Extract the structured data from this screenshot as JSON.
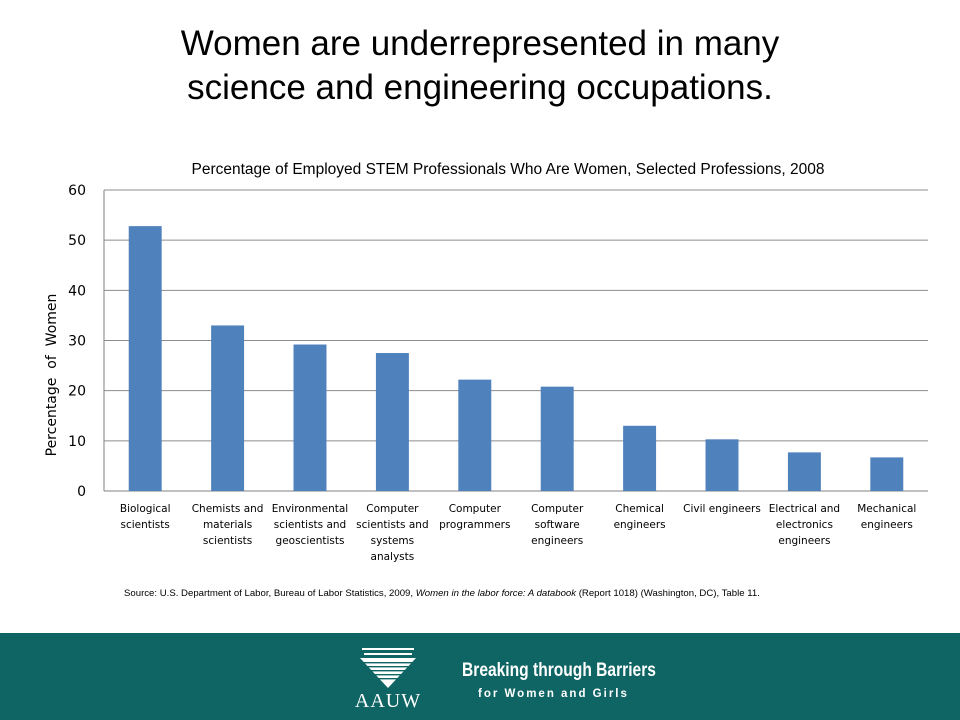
{
  "slide": {
    "title_line1": "Women are underrepresented in many",
    "title_line2": "science and engineering occupations."
  },
  "chart_data": {
    "type": "bar",
    "title": "Percentage of Employed STEM Professionals Who Are Women, Selected Professions, 2008",
    "xlabel": "",
    "ylabel": "Percentage  of  Women",
    "ylim": [
      0,
      60
    ],
    "yticks": [
      0,
      10,
      20,
      30,
      40,
      50,
      60
    ],
    "grid": true,
    "bar_color": "#4f81bd",
    "categories": [
      [
        "Biological",
        "scientists"
      ],
      [
        "Chemists and",
        "materials",
        "scientists"
      ],
      [
        "Environmental",
        "scientists and",
        "geoscientists"
      ],
      [
        "Computer",
        "scientists and",
        "systems",
        "analysts"
      ],
      [
        "Computer",
        "programmers"
      ],
      [
        "Computer",
        "software",
        "engineers"
      ],
      [
        "Chemical",
        "engineers"
      ],
      [
        "Civil engineers"
      ],
      [
        "Electrical and",
        "electronics",
        "engineers"
      ],
      [
        "Mechanical",
        "engineers"
      ]
    ],
    "values": [
      52.8,
      33.0,
      29.2,
      27.5,
      22.2,
      20.8,
      13.0,
      10.3,
      7.7,
      6.7
    ]
  },
  "source": {
    "prefix": "Source: U.S. Department of Labor, Bureau of Labor Statistics, 2009, ",
    "italic": "Women in the labor force: A databook",
    "suffix": " (Report 1018) (Washington, DC), Table 11."
  },
  "footer": {
    "logo_text": "AAUW",
    "tagline": "Breaking through Barriers",
    "tagline_sub": "for Women and Girls",
    "band_color": "#0f6464"
  }
}
